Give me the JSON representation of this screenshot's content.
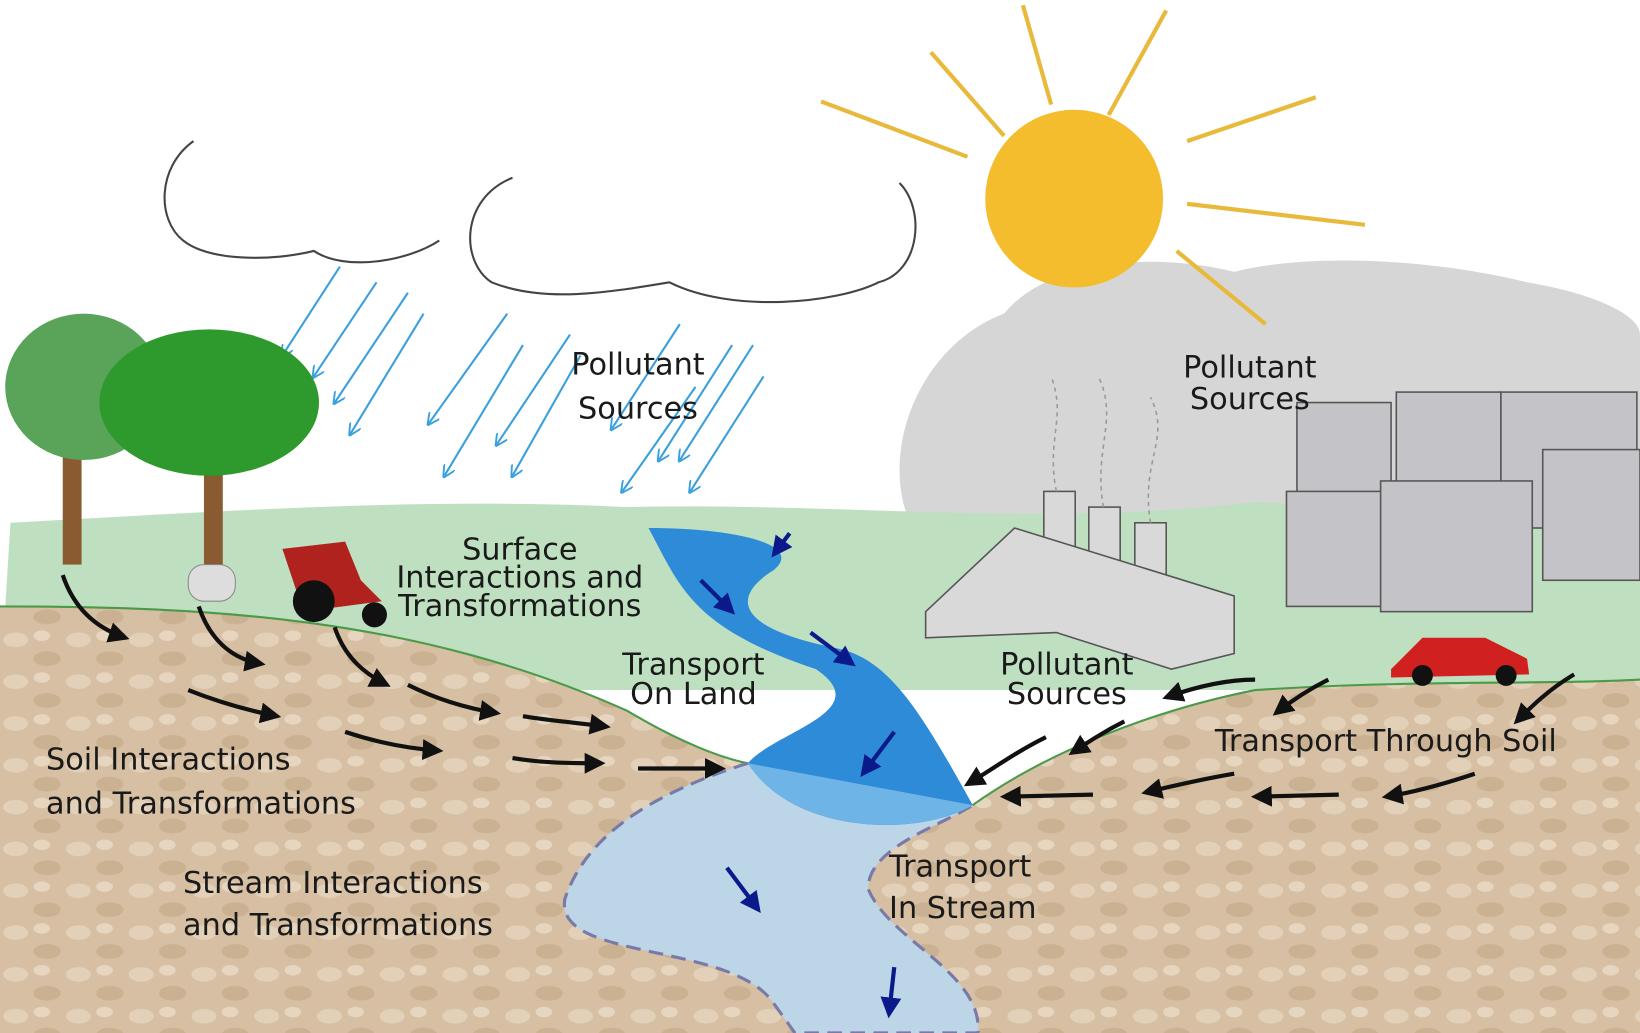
{
  "labels": [
    {
      "lines": [
        "Pollutant",
        "Sources"
      ]
    },
    {
      "lines": [
        "Pollutant",
        "Sources"
      ]
    },
    {
      "lines": [
        "Surface",
        "Interactions and",
        "Transformations"
      ]
    },
    {
      "lines": [
        "Transport",
        "On Land"
      ]
    },
    {
      "lines": [
        "Pollutant",
        "Sources"
      ]
    },
    {
      "lines": [
        "Soil Interactions",
        "and Transformations"
      ]
    },
    {
      "lines": [
        "Transport Through Soil"
      ]
    },
    {
      "lines": [
        "Stream Interactions",
        "and Transformations"
      ]
    },
    {
      "lines": [
        "Transport",
        "In Stream"
      ]
    }
  ]
}
